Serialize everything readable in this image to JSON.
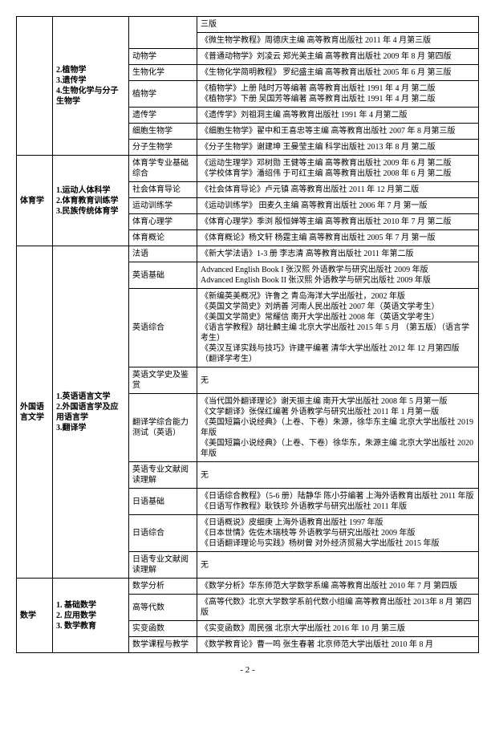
{
  "rows": [
    {
      "c4": "三版"
    },
    {
      "c4": "《微生物学教程》周德庆主编 高等教育出版社 2011 年 4 月第三版"
    },
    {
      "c3": "动物学",
      "c4": "《普通动物学》刘凌云 郑光美主编 高等教育出版社 2009 年 8 月 第四版"
    },
    {
      "c3": "生物化学",
      "c4": "《生物化学简明教程》 罗纪盛主编 高等教育出版社 2005 年 6 月 第三版"
    },
    {
      "c3": "植物学",
      "c4": "《植物学》上册 陆时万等编著 高等教育出版社 1991 年 4 月 第二版\n《植物学》下册 吴国芳等编著 高等教育出版社 1991 年 4 月 第二版"
    },
    {
      "c3": "遗传学",
      "c4": "《遗传学》刘祖洞主编 高等教育出版社 1991 年 4 月第二版"
    },
    {
      "c3": "细胞生物学",
      "c4": "《细胞生物学》翟中和王喜忠等主编 高等教育出版社 2007 年 8 月第三版"
    },
    {
      "c3": "分子生物学",
      "c4": "《分子生物学》谢建坤 王曼莹主编 科学出版社 2013 年 8 月 第二版"
    },
    {
      "c3": "体育学专业基础综合",
      "c4": "《运动生理学》邓树勋 王健等主编 高等教育出版社 2009 年 6 月 第二版\n《学校体育学》潘绍伟 于可红主编 高等教育出版社 2008 年 6 月 第二版"
    },
    {
      "c3": "社会体育导论",
      "c4": "《社会体育导论》卢元镇 高等教育出版社 2011 年 12 月第二版"
    },
    {
      "c3": "运动训练学",
      "c4": "《运动训练学》 田麦久主编 高等教育出版社 2006 年 7 月 第一版"
    },
    {
      "c3": "体育心理学",
      "c4": "《体育心理学》季浏 殷恒婵等主编 高等教育出版社 2010 年 7 月 第二版"
    },
    {
      "c3": "体育概论",
      "c4": "《体育概论》杨文轩 杨霆主编 高等教育出版社 2005 年 7 月 第一版"
    },
    {
      "c3": "法语",
      "c4": "《新大学法语》1-3 册 李志清 高等教育出版社 2011 年第二版"
    },
    {
      "c3": "英语基础",
      "c4": "Advanced English Book I 张汉熙 外语教学与研究出版社 2009 年版\nAdvanced English Book II 张汉熙 外语教学与研究出版社 2009 年版"
    },
    {
      "c3": "英语综合",
      "c4": "《新编英美概况》许鲁之 青岛海洋大学出版社，2002 年版\n《英国文学简史》刘炳善 河南人民出版社 2007 年（英语文学考生）\n《美国文学简史》常耀信 南开大学出版社 2008 年（英语文学考生）\n《语言学教程》胡壮麟主编 北京大学出版社 2015 年 5 月 （第五版）（语言学考生）\n《英汉互译实践与技巧》许建平编著 清华大学出版社 2012 年 12 月第四版（翻译学考生）"
    },
    {
      "c3": "英语文学史及鉴赏",
      "c4": "无"
    },
    {
      "c3": "翻译学综合能力测试（英语）",
      "c4": "《当代国外翻译理论》谢天振主编 南开大学出版社 2008 年 5 月第一版\n《文学翻译》张保红编著 外语教学与研究出版社 2011 年 1 月第一版\n《英国短篇小说经典》（上卷、下卷）朱源，徐华东主编 北京大学出版社 2019 年版\n《美国短篇小说经典》（上卷、下卷）徐华东，朱源主编 北京大学出版社 2020 年版"
    },
    {
      "c3": "英语专业文献阅读理解",
      "c4": "无"
    },
    {
      "c3": "日语基础",
      "c4": "《日语综合教程》（5-6 册）陆静华 陈小芬编著 上海外语教育出版社 2011 年版\n《日语写作教程》耿铁珍 外语教学与研究出版社 2011 年版"
    },
    {
      "c3": "日语综合",
      "c4": "《日语概说》皮细庚 上海外语教育出版社 1997 年版\n《日本世情》佐佐木瑞枝等 外语教学与研究出版社 2009 年版\n《日语翻译理论与实践》杨树曾 对外经济贸易大学出版社 2015 年版"
    },
    {
      "c3": "日语专业文献阅读理解",
      "c4": "无"
    },
    {
      "c3": "数学分析",
      "c4": "《数学分析》华东师范大学数学系编 高等教育出版社 2010 年 7 月 第四版"
    },
    {
      "c3": "高等代数",
      "c4": "《高等代数》北京大学数学系前代数小组编 高等教育出版社 2013年 8 月 第四版"
    },
    {
      "c3": "实变函数",
      "c4": "《实变函数》周民强 北京大学出版社 2016 年 10 月 第三版"
    },
    {
      "c3": "数学课程与教学",
      "c4": "《数学教育论》曹一鸣 张生春著 北京师范大学出版社 2010 年 8 月"
    }
  ],
  "groups": [
    {
      "col1": "",
      "col2": "2.植物学\n3.遗传学\n4.生物化学与分子生物学",
      "span": 8,
      "startRow": 0
    },
    {
      "col1": "体育学",
      "col2": "1.运动人体科学\n2.体育教育训练学\n3.民族传统体育学",
      "span": 5,
      "startRow": 8
    },
    {
      "col1": "外国语言文学",
      "col2": "1.英语语言文学\n2.外国语言学及应用语言学\n3.翻译学",
      "span": 9,
      "startRow": 13
    },
    {
      "col1": "数学",
      "col2": "1. 基础数学\n2. 应用数学\n3. 数学教育",
      "span": 4,
      "startRow": 22
    }
  ],
  "pageNum": "- 2 -"
}
